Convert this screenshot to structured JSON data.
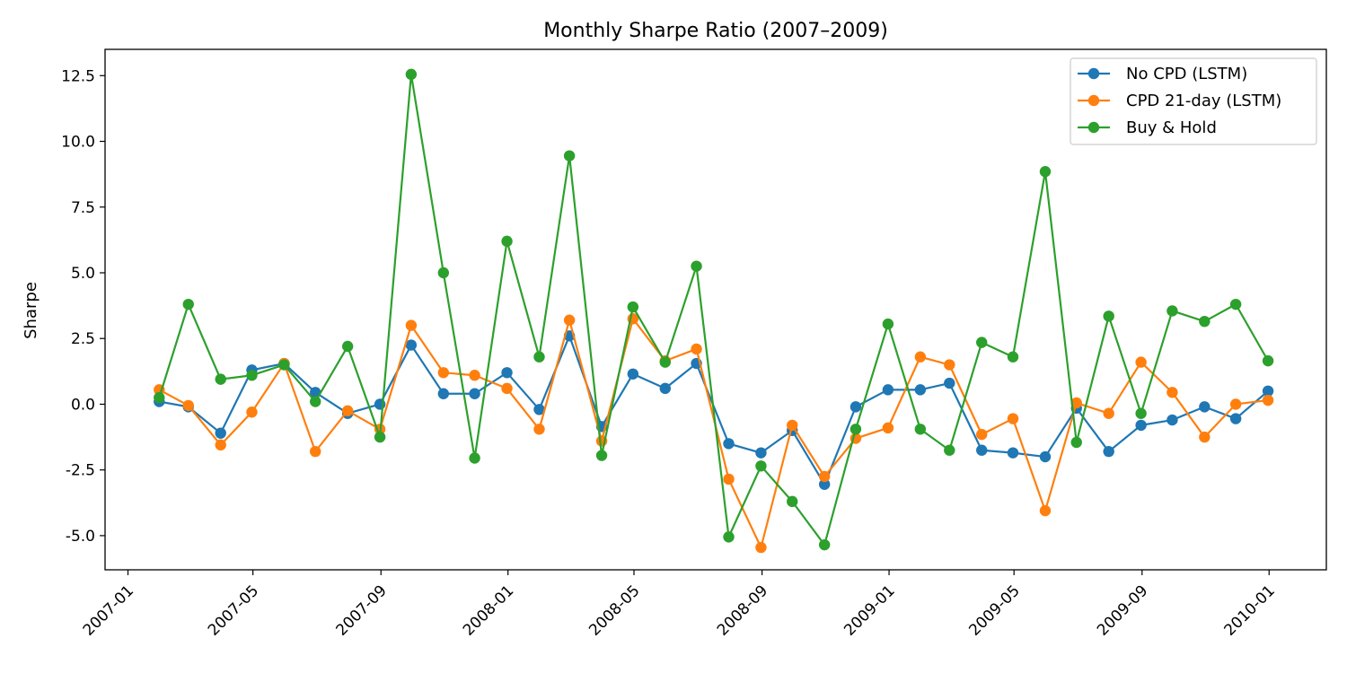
{
  "chart_data": {
    "type": "line",
    "title": "Monthly Sharpe Ratio (2007–2009)",
    "xlabel": "",
    "ylabel": "Sharpe",
    "ylim": [
      -6.3,
      13.5
    ],
    "xlim": [
      "2006-12-10",
      "2010-02-25"
    ],
    "x_ticks": [
      "2007-01",
      "2007-05",
      "2007-09",
      "2008-01",
      "2008-05",
      "2008-09",
      "2009-01",
      "2009-05",
      "2009-09",
      "2010-01"
    ],
    "y_ticks": [
      -5.0,
      -2.5,
      0.0,
      2.5,
      5.0,
      7.5,
      10.0,
      12.5
    ],
    "grid": false,
    "legend_position": "top-right",
    "x": [
      "2007-01-31",
      "2007-02-28",
      "2007-03-31",
      "2007-04-30",
      "2007-05-31",
      "2007-06-30",
      "2007-07-31",
      "2007-08-31",
      "2007-09-30",
      "2007-10-31",
      "2007-11-30",
      "2007-12-31",
      "2008-01-31",
      "2008-02-29",
      "2008-03-31",
      "2008-04-30",
      "2008-05-31",
      "2008-06-30",
      "2008-07-31",
      "2008-08-31",
      "2008-09-30",
      "2008-10-31",
      "2008-11-30",
      "2008-12-31",
      "2009-01-31",
      "2009-02-28",
      "2009-03-31",
      "2009-04-30",
      "2009-05-31",
      "2009-06-30",
      "2009-07-31",
      "2009-08-31",
      "2009-09-30",
      "2009-10-31",
      "2009-11-30",
      "2009-12-31"
    ],
    "series": [
      {
        "name": "No CPD (LSTM)",
        "color": "#1f77b4",
        "values": [
          0.1,
          -0.1,
          -1.1,
          1.3,
          1.55,
          0.45,
          -0.35,
          0.0,
          2.25,
          0.4,
          0.4,
          1.2,
          -0.2,
          2.6,
          -0.85,
          1.15,
          0.6,
          1.55,
          -1.5,
          -1.85,
          -1.0,
          -3.05,
          -0.1,
          0.55,
          0.55,
          0.8,
          -1.75,
          -1.85,
          -2.0,
          -0.15,
          -1.8,
          -0.8,
          -0.6,
          -0.1,
          -0.55,
          0.5
        ]
      },
      {
        "name": "CPD 21-day (LSTM)",
        "color": "#ff7f0e",
        "values": [
          0.55,
          -0.05,
          -1.55,
          -0.3,
          1.55,
          -1.8,
          -0.25,
          -0.95,
          3.0,
          1.2,
          1.1,
          0.6,
          -0.95,
          3.2,
          -1.4,
          3.25,
          1.65,
          2.1,
          -2.85,
          -5.45,
          -0.8,
          -2.75,
          -1.3,
          -0.9,
          1.8,
          1.5,
          -1.15,
          -0.55,
          -4.05,
          0.05,
          -0.35,
          1.6,
          0.45,
          -1.25,
          0.0,
          0.15
        ]
      },
      {
        "name": "Buy & Hold",
        "color": "#2ca02c",
        "values": [
          0.25,
          3.8,
          0.95,
          1.1,
          1.5,
          0.1,
          2.2,
          -1.25,
          12.55,
          5.0,
          -2.05,
          6.2,
          1.8,
          9.45,
          -1.95,
          3.7,
          1.6,
          5.25,
          -5.05,
          -2.35,
          -3.7,
          -5.35,
          -0.95,
          3.05,
          -0.95,
          -1.75,
          2.35,
          1.8,
          8.85,
          -1.45,
          3.35,
          -0.35,
          3.55,
          3.15,
          3.8,
          1.65
        ]
      }
    ]
  }
}
